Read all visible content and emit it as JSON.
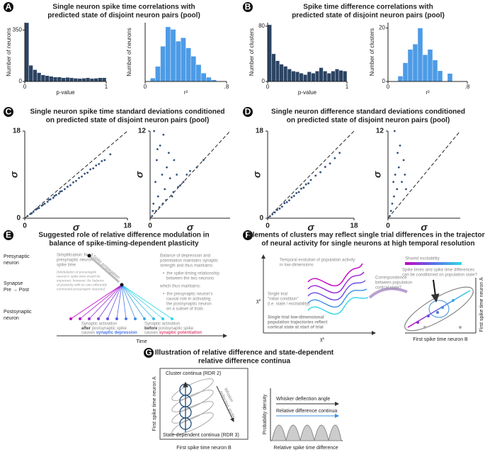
{
  "chart_data": [
    {
      "type": "histogram",
      "xlabel": "p-value",
      "ylabel": "Number of neurons",
      "color": "#2c4463",
      "bins": [
        0,
        0.05,
        0.1,
        0.15,
        0.2,
        0.25,
        0.3,
        0.35,
        0.4,
        0.45,
        0.5,
        0.55,
        0.6,
        0.65,
        0.7,
        0.75,
        0.8,
        0.85,
        0.9,
        0.95,
        1
      ],
      "values": [
        400,
        110,
        80,
        60,
        45,
        40,
        35,
        30,
        30,
        25,
        28,
        25,
        22,
        20,
        22,
        25,
        20,
        22,
        25,
        25
      ],
      "xlim": [
        0,
        1
      ],
      "xticks": [
        0,
        1
      ],
      "ylim": [
        0,
        400
      ],
      "yticks": [
        0,
        350
      ]
    },
    {
      "type": "histogram",
      "xlabel": "r²",
      "ylabel": "Number of neurons",
      "color": "#4d9be6",
      "bins": [
        0.05,
        0.1,
        0.15,
        0.2,
        0.25,
        0.3,
        0.35,
        0.4,
        0.45,
        0.5,
        0.55,
        0.6,
        0.65,
        0.7
      ],
      "values": [
        4,
        18,
        42,
        65,
        62,
        48,
        52,
        40,
        30,
        20,
        10,
        5,
        2
      ],
      "xlim": [
        0,
        0.8
      ],
      "xticks": [
        0,
        {
          "value": 0.8,
          "label": ".8"
        }
      ],
      "ylim": [
        0,
        70
      ]
    },
    {
      "type": "histogram",
      "xlabel": "p-value",
      "ylabel": "Number of clusters",
      "color": "#2c4463",
      "bins": [
        0,
        0.05,
        0.1,
        0.15,
        0.2,
        0.25,
        0.3,
        0.35,
        0.4,
        0.45,
        0.5,
        0.55,
        0.6,
        0.65,
        0.7,
        0.75,
        0.8,
        0.85,
        0.9,
        0.95,
        1
      ],
      "values": [
        82,
        40,
        30,
        25,
        22,
        18,
        15,
        14,
        12,
        10,
        14,
        12,
        15,
        20,
        15,
        12,
        15,
        18,
        16,
        15
      ],
      "xlim": [
        0,
        1
      ],
      "xticks": [
        0,
        1
      ],
      "ylim": [
        0,
        85
      ],
      "yticks": [
        0,
        80
      ]
    },
    {
      "type": "histogram",
      "xlabel": "r²",
      "ylabel": "Number of clusters",
      "color": "#4d9be6",
      "bins": [
        0.1,
        0.15,
        0.2,
        0.25,
        0.3,
        0.35,
        0.4,
        0.45,
        0.5,
        0.55,
        0.6,
        0.65
      ],
      "values": [
        2,
        7,
        12,
        14,
        20,
        10,
        12,
        8,
        4,
        0,
        3
      ],
      "xlim": [
        0,
        0.8
      ],
      "xticks": [
        0,
        {
          "value": 0.8,
          "label": ".8"
        }
      ],
      "ylim": [
        0,
        22
      ],
      "yticks": [
        0,
        20
      ]
    },
    {
      "type": "scatter",
      "xlabel": "σ",
      "ylabel": "σ",
      "color": "#34507a",
      "diagonal": true,
      "x": [
        0.5,
        1,
        1.5,
        2,
        2.5,
        3,
        3.5,
        4,
        4.5,
        5,
        5.5,
        6,
        6.5,
        7,
        7.5,
        8,
        8.5,
        9,
        9.5,
        10,
        10.5,
        11,
        11.5,
        12,
        12.5,
        13,
        13.5,
        14,
        15,
        1.2,
        2.2,
        3.2,
        4.2,
        5.2,
        6.2
      ],
      "values": [
        0.45,
        0.9,
        1.3,
        1.8,
        2.1,
        2.6,
        3.0,
        3.4,
        3.9,
        4.2,
        4.8,
        5.1,
        5.6,
        6.0,
        6.5,
        6.8,
        7.4,
        7.7,
        8.3,
        8.6,
        9.2,
        9.4,
        10.1,
        10.3,
        10.9,
        11.2,
        11.8,
        12.0,
        13.2,
        1.0,
        2.0,
        2.8,
        3.8,
        4.6,
        5.5
      ],
      "xlim": [
        0,
        18
      ],
      "xticks": [
        0,
        18
      ],
      "ylim": [
        0,
        18
      ],
      "yticks": [
        0,
        18
      ]
    },
    {
      "type": "scatter",
      "xlabel": "σ",
      "ylabel": "σ",
      "color": "#34507a",
      "diagonal": true,
      "x": [
        0.3,
        0.5,
        0.8,
        1,
        1.2,
        1.5,
        1.8,
        2,
        2.2,
        2.5,
        2.8,
        3,
        3.3,
        3.6,
        4,
        4.5,
        5,
        5.5,
        6,
        0.4,
        0.9,
        1.4,
        1.9,
        2.4,
        3.5,
        4.2,
        0.6,
        1.1,
        7,
        8
      ],
      "values": [
        0.3,
        2,
        5,
        8,
        3,
        10,
        6,
        11.5,
        4,
        7,
        9,
        5.5,
        3,
        8,
        6,
        4.5,
        5,
        6,
        6.5,
        1,
        1,
        1.5,
        2,
        2.5,
        3.6,
        4.3,
        12,
        9.5,
        7,
        8
      ],
      "xlim": [
        0,
        12
      ],
      "xticks": [
        0
      ],
      "ylim": [
        0,
        12
      ],
      "yticks": [
        12
      ]
    },
    {
      "type": "scatter",
      "xlabel": "σ",
      "ylabel": "σ",
      "color": "#34507a",
      "diagonal": true,
      "x": [
        0.5,
        1,
        1.5,
        2,
        2.5,
        3,
        3.5,
        4,
        4.5,
        5,
        5.5,
        6,
        6.5,
        7,
        7.5,
        8,
        8.5,
        9,
        10,
        11,
        12,
        13,
        14,
        15
      ],
      "values": [
        0.4,
        0.8,
        1.2,
        1.7,
        2.0,
        2.4,
        3.1,
        3.3,
        3.7,
        4.3,
        4.6,
        5.2,
        5.4,
        6.1,
        6.3,
        7.0,
        7.2,
        7.9,
        8.8,
        9.5,
        10.6,
        11.3,
        12.4,
        13.5
      ],
      "xlim": [
        0,
        18
      ],
      "xticks": [
        0,
        18
      ],
      "ylim": [
        0,
        18
      ],
      "yticks": [
        0,
        18
      ]
    },
    {
      "type": "scatter",
      "xlabel": "σ",
      "ylabel": "σ",
      "color": "#34507a",
      "diagonal": true,
      "x": [
        0.3,
        0.5,
        0.7,
        1,
        1.2,
        1.5,
        1.8,
        2,
        2.3,
        2.6,
        3,
        1.1,
        0.9,
        1.6,
        2.8
      ],
      "values": [
        0.3,
        1,
        2,
        3,
        6,
        4,
        7,
        10,
        5,
        8,
        4,
        12,
        5,
        9,
        6
      ],
      "xlim": [
        0,
        12
      ],
      "xticks": [
        0
      ],
      "ylim": [
        0,
        12
      ],
      "yticks": [
        12
      ]
    }
  ],
  "figure": {
    "panels": [
      {
        "letter": "A",
        "title": [
          "Single neuron spike time correlations with",
          "predicted state of disjoint neuron pairs (pool)"
        ]
      },
      {
        "letter": "B",
        "title": [
          "Spike time difference correlations with",
          "predicted state of disjoint neuron pairs (pool)"
        ]
      },
      {
        "letter": "C",
        "title": [
          "Single neuron spike time standard deviations conditioned",
          "on predicted state of disjoint neuron pairs (pool)"
        ]
      },
      {
        "letter": "D",
        "title": [
          "Single neuron difference standard deviations conditioned",
          "on predicted state of disjoint neuron pairs (pool)"
        ]
      },
      {
        "letter": "E",
        "title": [
          "Suggested role of relative difference modulation in",
          "balance of spike-timing-dependent plasticity"
        ]
      },
      {
        "letter": "F",
        "title": [
          "Elements of clusters may reflect single trial differences in the trajectory",
          "of neural activity for single neurons at high temporal resolution"
        ]
      },
      {
        "letter": "G",
        "title": [
          "Illustration of relative difference and state-dependent",
          "relative difference continua"
        ]
      }
    ],
    "E": {
      "rows": [
        [
          "Presynaptic",
          "neuron"
        ],
        [
          "Synapse",
          "Pre → Post"
        ],
        [
          "Postsynaptic",
          "neuron"
        ]
      ],
      "simplification": [
        "Simplification: fixed",
        "presynaptic neuron",
        "spike time"
      ],
      "note": [
        "(Modulation of presynaptic",
        "neuron's spike time would be",
        "important, however, for balance",
        "of plasticity with its own efferently",
        "connected presynaptic neurons)"
      ],
      "propagation": "Spike propagation",
      "balance": [
        "Balance of depression and",
        "potentiation maintains synaptic",
        "strength and thus maintains:",
        "•  the spike-timing relationship",
        "   between the two neurons",
        "which thus maintains:",
        "•  the presynaptic neuron's",
        "   causal role in activating",
        "   the postsynaptic neuron",
        "   on a subset of trials"
      ],
      "depression": {
        "line": "Synaptic activation",
        "when": "after",
        "rest": "postsynaptic spike",
        "causes": "causes",
        "effect": "synaptic depression"
      },
      "potentiation": {
        "line": "Synaptic activation",
        "when": "before",
        "rest": "postsynaptic spike",
        "causes": "causes",
        "effect": "synaptic potentiation"
      },
      "time": "Time"
    },
    "F": {
      "temporal": [
        "Temporal evolution of population activity",
        "in low-dimensions"
      ],
      "initial": [
        "Single trial",
        "\"initial condition\"",
        "(i.e. state / excitability)"
      ],
      "trajectories": [
        "Single trial low-dimensional",
        "population trajectories reflect",
        "cortical state at start of trial"
      ],
      "correspondence": [
        "Correspondence",
        "between population",
        "cortical state?"
      ],
      "shared": "Shared excitability",
      "question": [
        "Spike times and spike time differences",
        "can be conditioned on population state?"
      ],
      "chi2": "χ²",
      "chi1": "χ¹",
      "xlabel": "First spike time neuron B",
      "ylabel": "First spike time neuron A"
    },
    "G": {
      "cluster": "Cluster continua (RDR 2)",
      "whisker": [
        "Whisker",
        "deflection angle"
      ],
      "state": "State-dependent continua (RDR 3)",
      "ylabel": "First spike time neuron A",
      "xlabel": "First spike time neuron B",
      "density": "Probability density",
      "angle": "Whisker deflection angle",
      "continua": "Relative difference continua",
      "difference": "Relative spike time difference"
    }
  }
}
